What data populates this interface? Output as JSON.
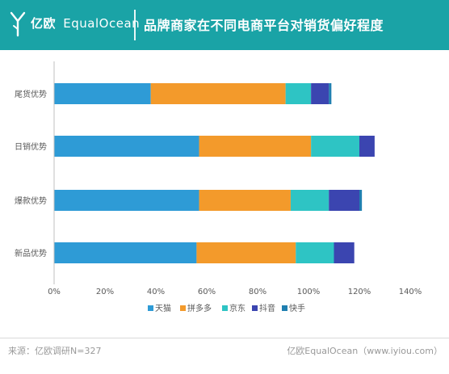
{
  "header": {
    "brand_cn": "亿欧",
    "brand_en": "EqualOcean",
    "title": "品牌商家在不同电商平台对销货偏好程度"
  },
  "chart_data": {
    "type": "bar",
    "orientation": "horizontal",
    "stacked": true,
    "title": "",
    "xlabel": "",
    "ylabel": "",
    "xlim": [
      0,
      140
    ],
    "x_ticks": [
      "0%",
      "20%",
      "40%",
      "60%",
      "80%",
      "100%",
      "120%",
      "140%"
    ],
    "categories": [
      "尾货优势",
      "日销优势",
      "爆款优势",
      "新品优势"
    ],
    "series": [
      {
        "name": "天猫",
        "color": "#2e9bd6",
        "values": [
          38,
          57,
          57,
          56
        ]
      },
      {
        "name": "拼多多",
        "color": "#f39a2b",
        "values": [
          53,
          44,
          36,
          39
        ]
      },
      {
        "name": "京东",
        "color": "#2ec4c4",
        "values": [
          10,
          19,
          15,
          15
        ]
      },
      {
        "name": "抖音",
        "color": "#3b45b0",
        "values": [
          7,
          6,
          12,
          8
        ]
      },
      {
        "name": "快手",
        "color": "#1f7fb0",
        "values": [
          1,
          0,
          1,
          0
        ]
      }
    ],
    "grid": false,
    "legend_position": "bottom"
  },
  "footer": {
    "source": "来源：亿欧调研N=327",
    "brand": "亿欧EqualOcean（www.iyiou.com）"
  }
}
